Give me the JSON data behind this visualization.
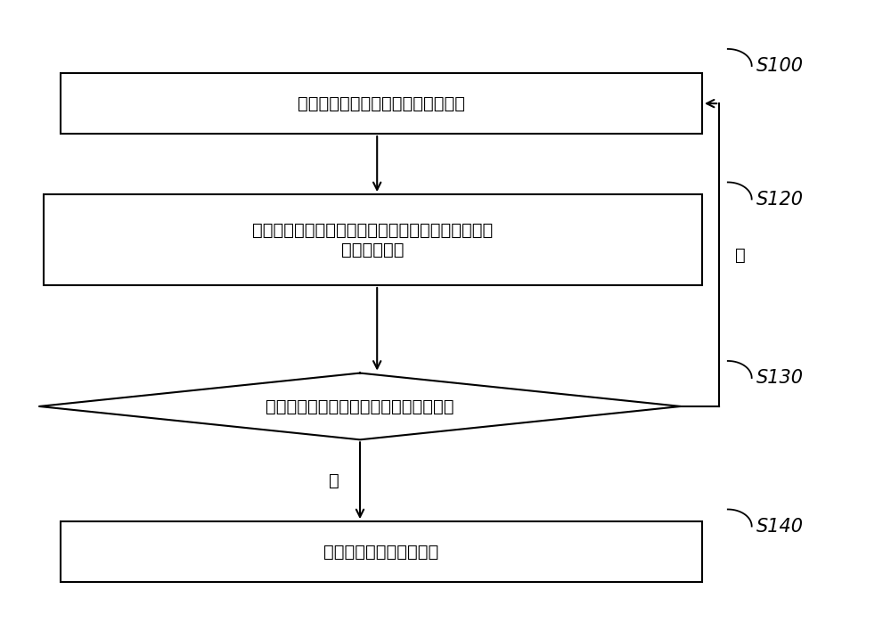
{
  "background_color": "#ffffff",
  "fig_width": 10.0,
  "fig_height": 7.08,
  "box0_text": "采集线路中所有的用电负载的电参量",
  "box1_text": "根据采集的用电负载的电参量，计算所有的所述用电\n负载的总容量",
  "box2_text": "检测所述总容量是否超过预设的额定容量",
  "box3_text": "调整所有的所述用电负载",
  "yes_text": "是",
  "no_text": "否",
  "step_labels": [
    "S100",
    "S120",
    "S130",
    "S140"
  ],
  "line_color": "#000000",
  "box_fill": "#ffffff",
  "box_edge": "#000000",
  "text_color": "#000000",
  "font_size": 14,
  "label_font_size": 15
}
